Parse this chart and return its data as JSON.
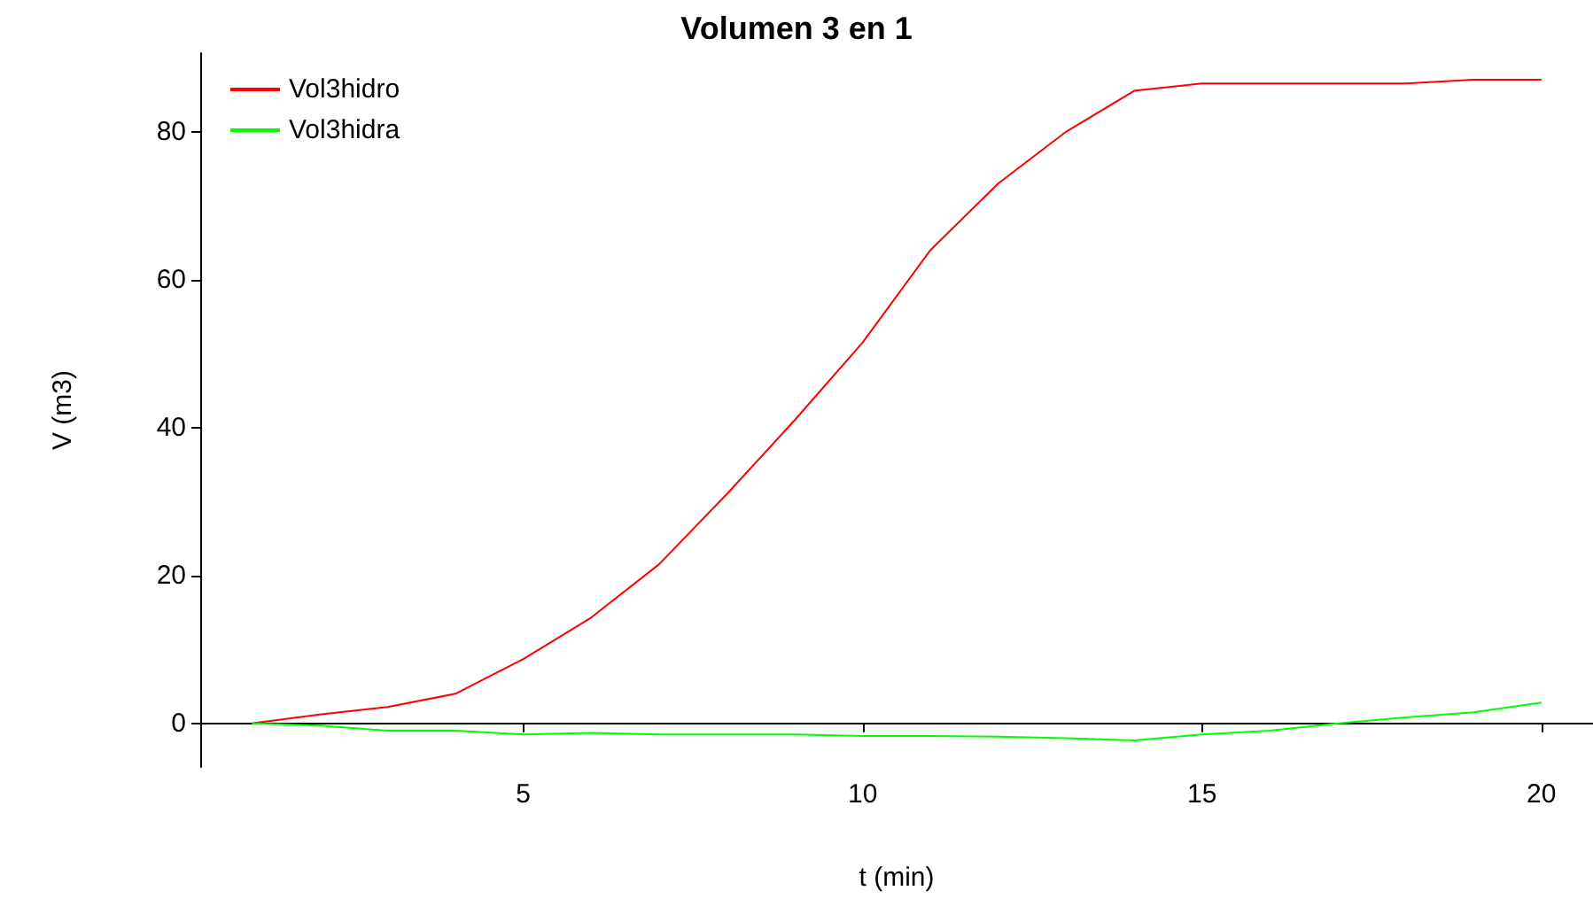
{
  "chart_data": {
    "type": "line",
    "title": "Volumen 3 en 1",
    "xlabel": "t (min)",
    "ylabel": "V (m3)",
    "x": [
      1,
      2,
      3,
      4,
      5,
      6,
      7,
      8,
      9,
      10,
      11,
      12,
      13,
      14,
      15,
      16,
      17,
      18,
      19,
      20
    ],
    "series": [
      {
        "name": "Vol3hidro",
        "color": "#ff0000",
        "values": [
          0,
          1.2,
          2.2,
          4,
          8.7,
          14.3,
          21.5,
          31,
          41,
          51.5,
          64,
          73,
          80,
          85.5,
          86.5,
          86.5,
          86.5,
          86.5,
          87,
          87
        ]
      },
      {
        "name": "Vol3hidra",
        "color": "#00ff00",
        "values": [
          0,
          -0.3,
          -1,
          -1,
          -1.5,
          -1.3,
          -1.5,
          -1.5,
          -1.5,
          -1.7,
          -1.7,
          -1.8,
          -2,
          -2.3,
          -1.5,
          -1,
          0,
          0.8,
          1.5,
          2.8
        ]
      }
    ],
    "xlim": [
      0.24,
      20.76
    ],
    "ylim": [
      -5.9,
      90.6
    ],
    "xticks": [
      5,
      10,
      15,
      20
    ],
    "yticks": [
      0,
      20,
      40,
      60,
      80
    ],
    "grid": false,
    "legend": "top left",
    "marker": "none",
    "line_style": "solid"
  }
}
